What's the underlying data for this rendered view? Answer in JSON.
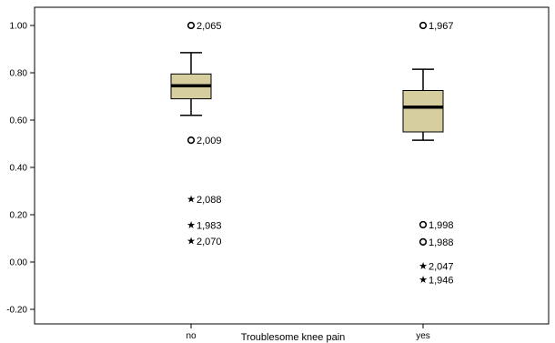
{
  "chart_data": {
    "type": "boxplot",
    "xlabel": "Troublesome knee pain",
    "ylabel": "",
    "ylim": [
      -0.25,
      1.08
    ],
    "y_ticks": [
      "1.00",
      "0.80",
      "0.60",
      "0.40",
      "0.20",
      "0.00",
      "-0.20"
    ],
    "categories": [
      "no",
      "yes"
    ],
    "box_color": "#d6ce9f",
    "boxes": [
      {
        "category": "no",
        "whisker_low": 0.62,
        "q1": 0.69,
        "median": 0.745,
        "q3": 0.795,
        "whisker_high": 0.885,
        "outliers": [
          {
            "label": "2,065",
            "value": 1.0,
            "marker": "circle"
          },
          {
            "label": "2,009",
            "value": 0.515,
            "marker": "circle"
          },
          {
            "label": "2,088",
            "value": 0.265,
            "marker": "star"
          },
          {
            "label": "1,983",
            "value": 0.155,
            "marker": "star"
          },
          {
            "label": "2,070",
            "value": 0.088,
            "marker": "star"
          }
        ]
      },
      {
        "category": "yes",
        "whisker_low": 0.515,
        "q1": 0.55,
        "median": 0.655,
        "q3": 0.725,
        "whisker_high": 0.815,
        "outliers": [
          {
            "label": "1,967",
            "value": 1.0,
            "marker": "circle"
          },
          {
            "label": "1,998",
            "value": 0.158,
            "marker": "circle"
          },
          {
            "label": "1,988",
            "value": 0.085,
            "marker": "circle"
          },
          {
            "label": "2,047",
            "value": -0.017,
            "marker": "star"
          },
          {
            "label": "1,946",
            "value": -0.075,
            "marker": "star"
          }
        ]
      }
    ]
  }
}
